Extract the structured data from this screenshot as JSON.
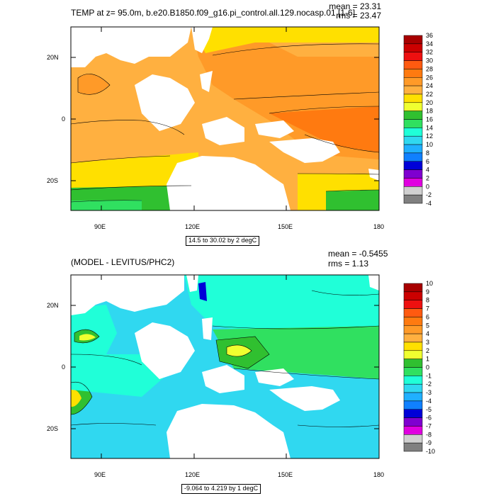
{
  "panel1": {
    "title": "TEMP at z=  95.0m, b.e20.B1850.f09_g16.pi_control.all.129.nocasp.01 [1-6]",
    "mean": "mean = 23.31",
    "rms": "rms = 23.47",
    "contour_info": "14.5 to 30.02 by 2 degC",
    "lat_ticks": [
      "20N",
      "0",
      "20S"
    ],
    "lon_ticks": [
      "90E",
      "120E",
      "150E",
      "180"
    ],
    "colorbar_labels": [
      "36",
      "34",
      "32",
      "30",
      "28",
      "26",
      "24",
      "22",
      "20",
      "18",
      "16",
      "14",
      "12",
      "10",
      "8",
      "6",
      "4",
      "2",
      "0",
      "-2",
      "-4"
    ],
    "colorbar_colors": [
      "#a80000",
      "#cc0000",
      "#ee1010",
      "#ff5a10",
      "#ff7a10",
      "#ff9a28",
      "#ffb040",
      "#ffe000",
      "#f0ff30",
      "#30c030",
      "#30e060",
      "#20ffd8",
      "#30d8f0",
      "#20b0ff",
      "#1080ff",
      "#0000d8",
      "#7f00d0",
      "#e000e0",
      "#d0d0d0",
      "#808080"
    ]
  },
  "panel2": {
    "title": "(MODEL - LEVITUS/PHC2)",
    "mean": "mean = -0.5455",
    "rms": "rms = 1.13",
    "contour_info": "-9.064 to 4.219 by 1 degC",
    "lat_ticks": [
      "20N",
      "0",
      "20S"
    ],
    "lon_ticks": [
      "90E",
      "120E",
      "150E",
      "180"
    ],
    "colorbar_labels": [
      "10",
      "9",
      "8",
      "7",
      "6",
      "5",
      "4",
      "3",
      "2",
      "1",
      "0",
      "-1",
      "-2",
      "-3",
      "-4",
      "-5",
      "-6",
      "-7",
      "-8",
      "-9",
      "-10"
    ],
    "colorbar_colors": [
      "#a80000",
      "#cc0000",
      "#ee1010",
      "#ff5a10",
      "#ff7a10",
      "#ff9a28",
      "#ffb040",
      "#ffe000",
      "#f0ff30",
      "#30c030",
      "#30e060",
      "#20ffd8",
      "#30d8f0",
      "#20b0ff",
      "#1080ff",
      "#0000d8",
      "#7f00d0",
      "#e000e0",
      "#d0d0d0",
      "#808080"
    ]
  }
}
